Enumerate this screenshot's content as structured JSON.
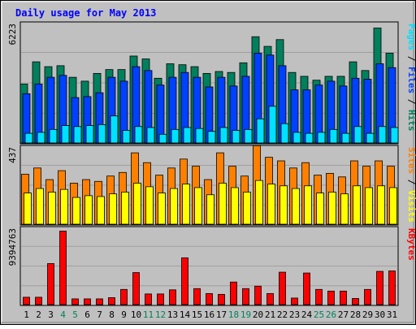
{
  "colors": {
    "frame_bg": "#c0c0c0",
    "grid": "#a0a0a0",
    "title": "#0000ff",
    "hits": "#00805c",
    "files": "#0040ff",
    "pages": "#00e0ff",
    "visits": "#ffff00",
    "sites": "#ff8000",
    "kbytes": "#ff0000",
    "weekend_label": "#00805c",
    "weekday_label": "#000000"
  },
  "chart_data": {
    "type": "bar",
    "title": "Daily usage for May 2013",
    "categories": [
      "1",
      "2",
      "3",
      "4",
      "5",
      "6",
      "7",
      "8",
      "9",
      "10",
      "11",
      "12",
      "13",
      "14",
      "15",
      "16",
      "17",
      "18",
      "19",
      "20",
      "21",
      "22",
      "23",
      "24",
      "25",
      "26",
      "27",
      "28",
      "29",
      "30",
      "31"
    ],
    "weekend_days": [
      "4",
      "5",
      "11",
      "12",
      "18",
      "19",
      "25",
      "26"
    ],
    "panels": [
      {
        "id": "hits-files-pages",
        "ymax_label": "6223",
        "ymax": 6223,
        "legend": [
          {
            "text": "Hits",
            "color": "#00805c"
          },
          {
            "text": "Files",
            "color": "#0040ff"
          },
          {
            "text": "Pages",
            "color": "#00e0ff"
          }
        ],
        "separator_color": "#000000",
        "series": [
          {
            "name": "Hits",
            "color": "#00805c",
            "values": [
              3050,
              4200,
              3950,
              4000,
              3400,
              3200,
              3600,
              3800,
              3800,
              4500,
              4350,
              3350,
              4100,
              4050,
              3950,
              3600,
              3700,
              3650,
              4150,
              5500,
              5000,
              5350,
              3650,
              3450,
              3250,
              3450,
              3450,
              4200,
              3750,
              5950,
              4650
            ]
          },
          {
            "name": "Files",
            "color": "#0040ff",
            "values": [
              2550,
              3050,
              3400,
              3500,
              2350,
              2400,
              2600,
              3400,
              3200,
              3950,
              3750,
              3000,
              3400,
              3650,
              3400,
              2900,
              3400,
              2950,
              3450,
              4650,
              4550,
              4000,
              2750,
              2750,
              3000,
              3200,
              2950,
              3350,
              3300,
              4100,
              3900
            ]
          },
          {
            "name": "Pages",
            "color": "#00e0ff",
            "values": [
              500,
              550,
              700,
              900,
              850,
              900,
              950,
              1400,
              650,
              850,
              800,
              450,
              700,
              800,
              750,
              600,
              800,
              650,
              700,
              1250,
              1900,
              1000,
              550,
              500,
              550,
              700,
              500,
              850,
              500,
              850,
              800
            ]
          }
        ]
      },
      {
        "id": "visits-sites",
        "ymax_label": "437",
        "ymax": 437,
        "legend": [
          {
            "text": "Visits",
            "color": "#ffff00"
          },
          {
            "text": "Sites",
            "color": "#ff8000"
          }
        ],
        "separator_color": "#000000",
        "series": [
          {
            "name": "Sites",
            "color": "#ff8000",
            "values": [
              280,
              315,
              250,
              300,
              230,
              250,
              240,
              270,
              290,
              400,
              345,
              275,
              315,
              365,
              325,
              250,
              400,
              325,
              270,
              440,
              375,
              355,
              315,
              345,
              275,
              285,
              265,
              355,
              325,
              355,
              325
            ]
          },
          {
            "name": "Visits",
            "color": "#ffff00",
            "values": [
              175,
              200,
              180,
              195,
              150,
              160,
              155,
              170,
              180,
              230,
              210,
              175,
              200,
              225,
              205,
              165,
              230,
              205,
              180,
              245,
              225,
              215,
              200,
              215,
              175,
              180,
              170,
              215,
              205,
              215,
              205
            ]
          }
        ]
      },
      {
        "id": "kbytes",
        "ymax_label": "9394763",
        "ymax": 9394763,
        "legend": [
          {
            "text": "KBytes",
            "color": "#ff0000"
          }
        ],
        "separator_color": "#000000",
        "series": [
          {
            "name": "KBytes",
            "color": "#ff0000",
            "values": [
              900000,
              900000,
              5000000,
              8950000,
              700000,
              700000,
              700000,
              850000,
              1850000,
              3900000,
              1300000,
              1300000,
              1800000,
              5700000,
              1950000,
              1350000,
              1250000,
              2750000,
              1950000,
              2250000,
              1350000,
              3950000,
              800000,
              3850000,
              1850000,
              1650000,
              1650000,
              750000,
              1850000,
              4050000,
              4100000
            ]
          }
        ]
      }
    ]
  }
}
